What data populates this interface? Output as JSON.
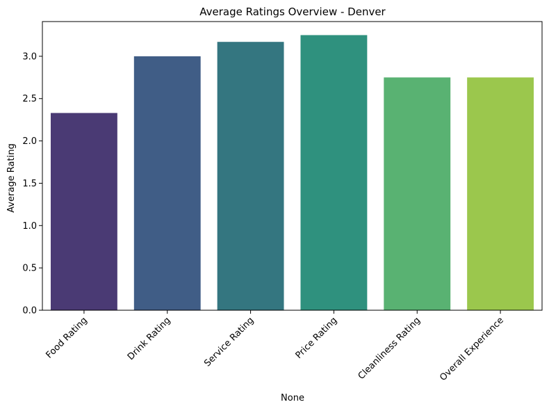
{
  "chart_data": {
    "type": "bar",
    "title": "Average Ratings Overview - Denver",
    "xlabel": "None",
    "ylabel": "Average Rating",
    "categories": [
      "Food Rating",
      "Drink Rating",
      "Service Rating",
      "Price Rating",
      "Cleanliness Rating",
      "Overall Experience"
    ],
    "values": [
      2.33,
      3.0,
      3.17,
      3.25,
      2.75,
      2.75
    ],
    "colors": [
      "#4a3a74",
      "#405d86",
      "#347680",
      "#2f917e",
      "#59b272",
      "#9bc74d"
    ],
    "ylim": [
      0,
      3.41
    ],
    "yticks": [
      "0.0",
      "0.5",
      "1.0",
      "1.5",
      "2.0",
      "2.5",
      "3.0"
    ],
    "grid": false,
    "legend": "none"
  }
}
